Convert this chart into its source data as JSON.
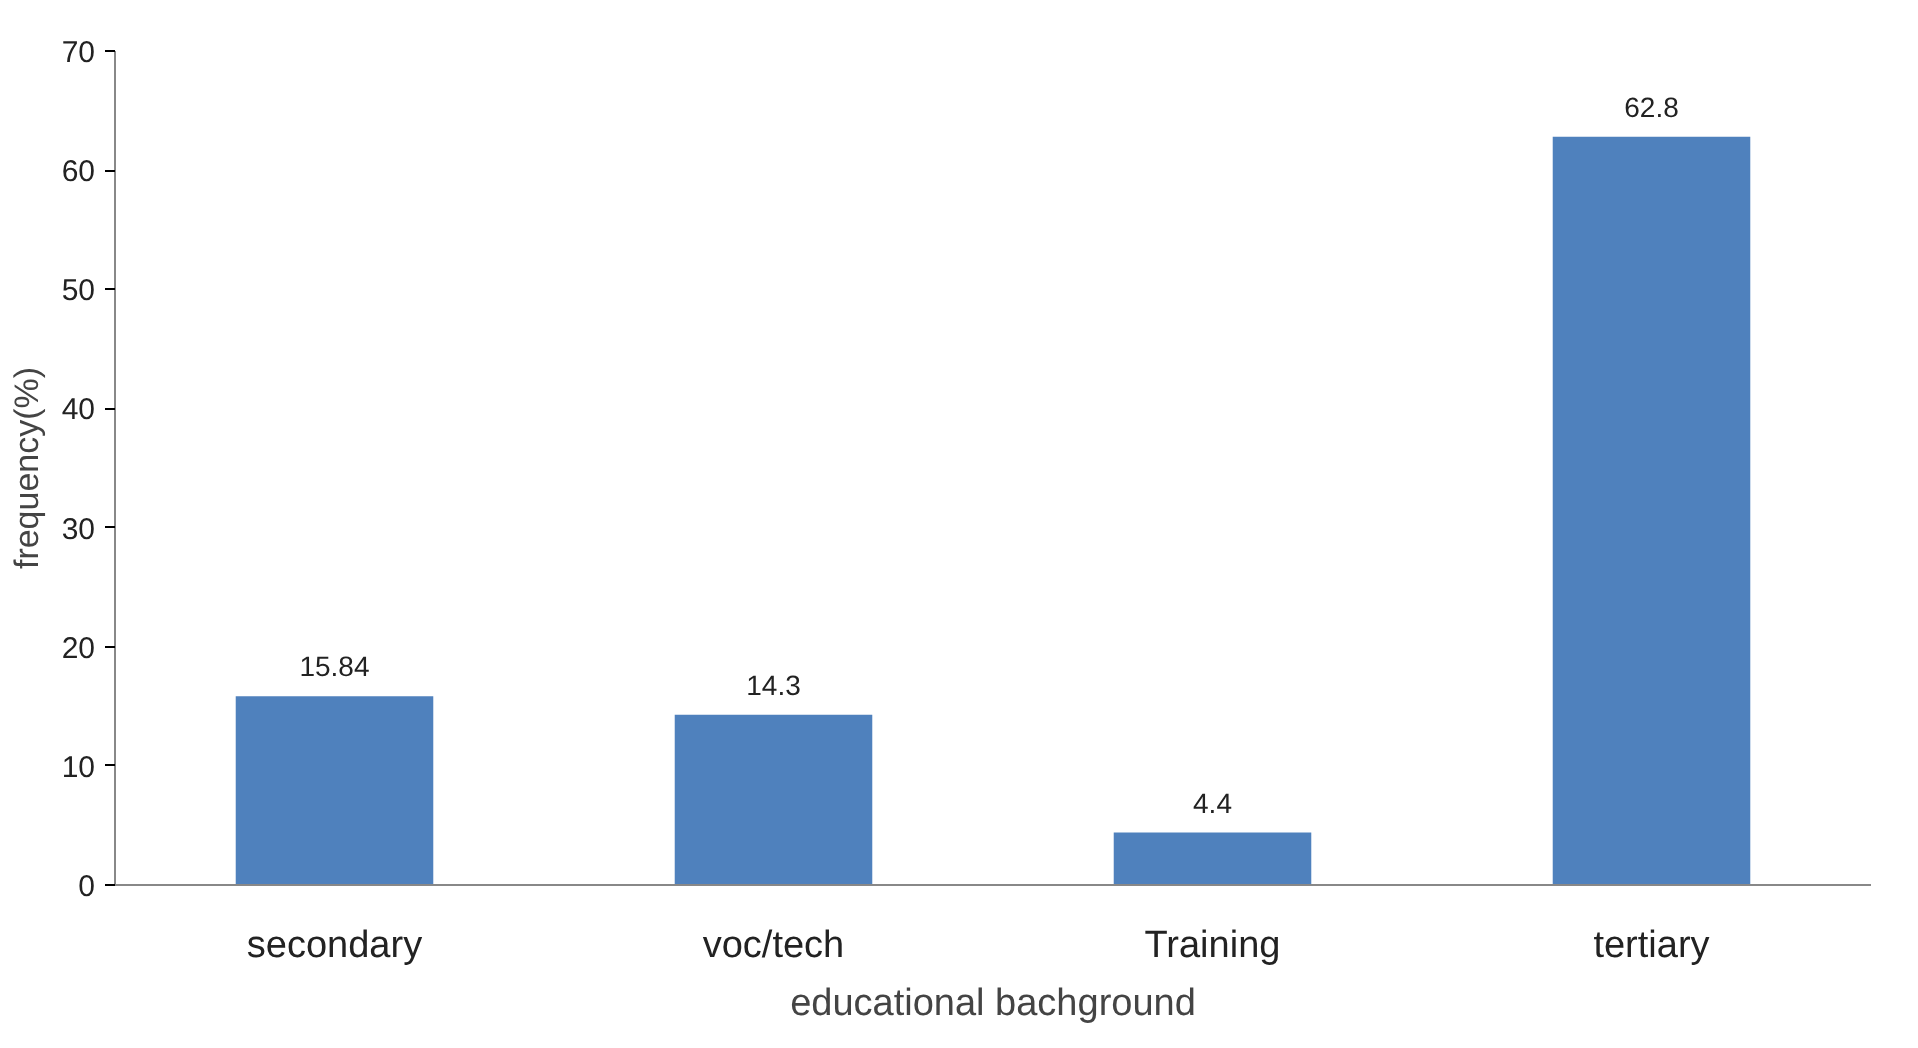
{
  "chart_data": {
    "type": "bar",
    "xlabel": "educational bachground",
    "ylabel": "frequency(%)",
    "categories": [
      "secondary",
      "voc/tech",
      "Training",
      "tertiary"
    ],
    "values": [
      15.84,
      14.3,
      4.4,
      62.8
    ],
    "color": "#4f81bd",
    "ylim": [
      0,
      70
    ],
    "yticks": [
      0,
      10,
      20,
      30,
      40,
      50,
      60,
      70
    ],
    "grid": false,
    "data_labels": true
  }
}
